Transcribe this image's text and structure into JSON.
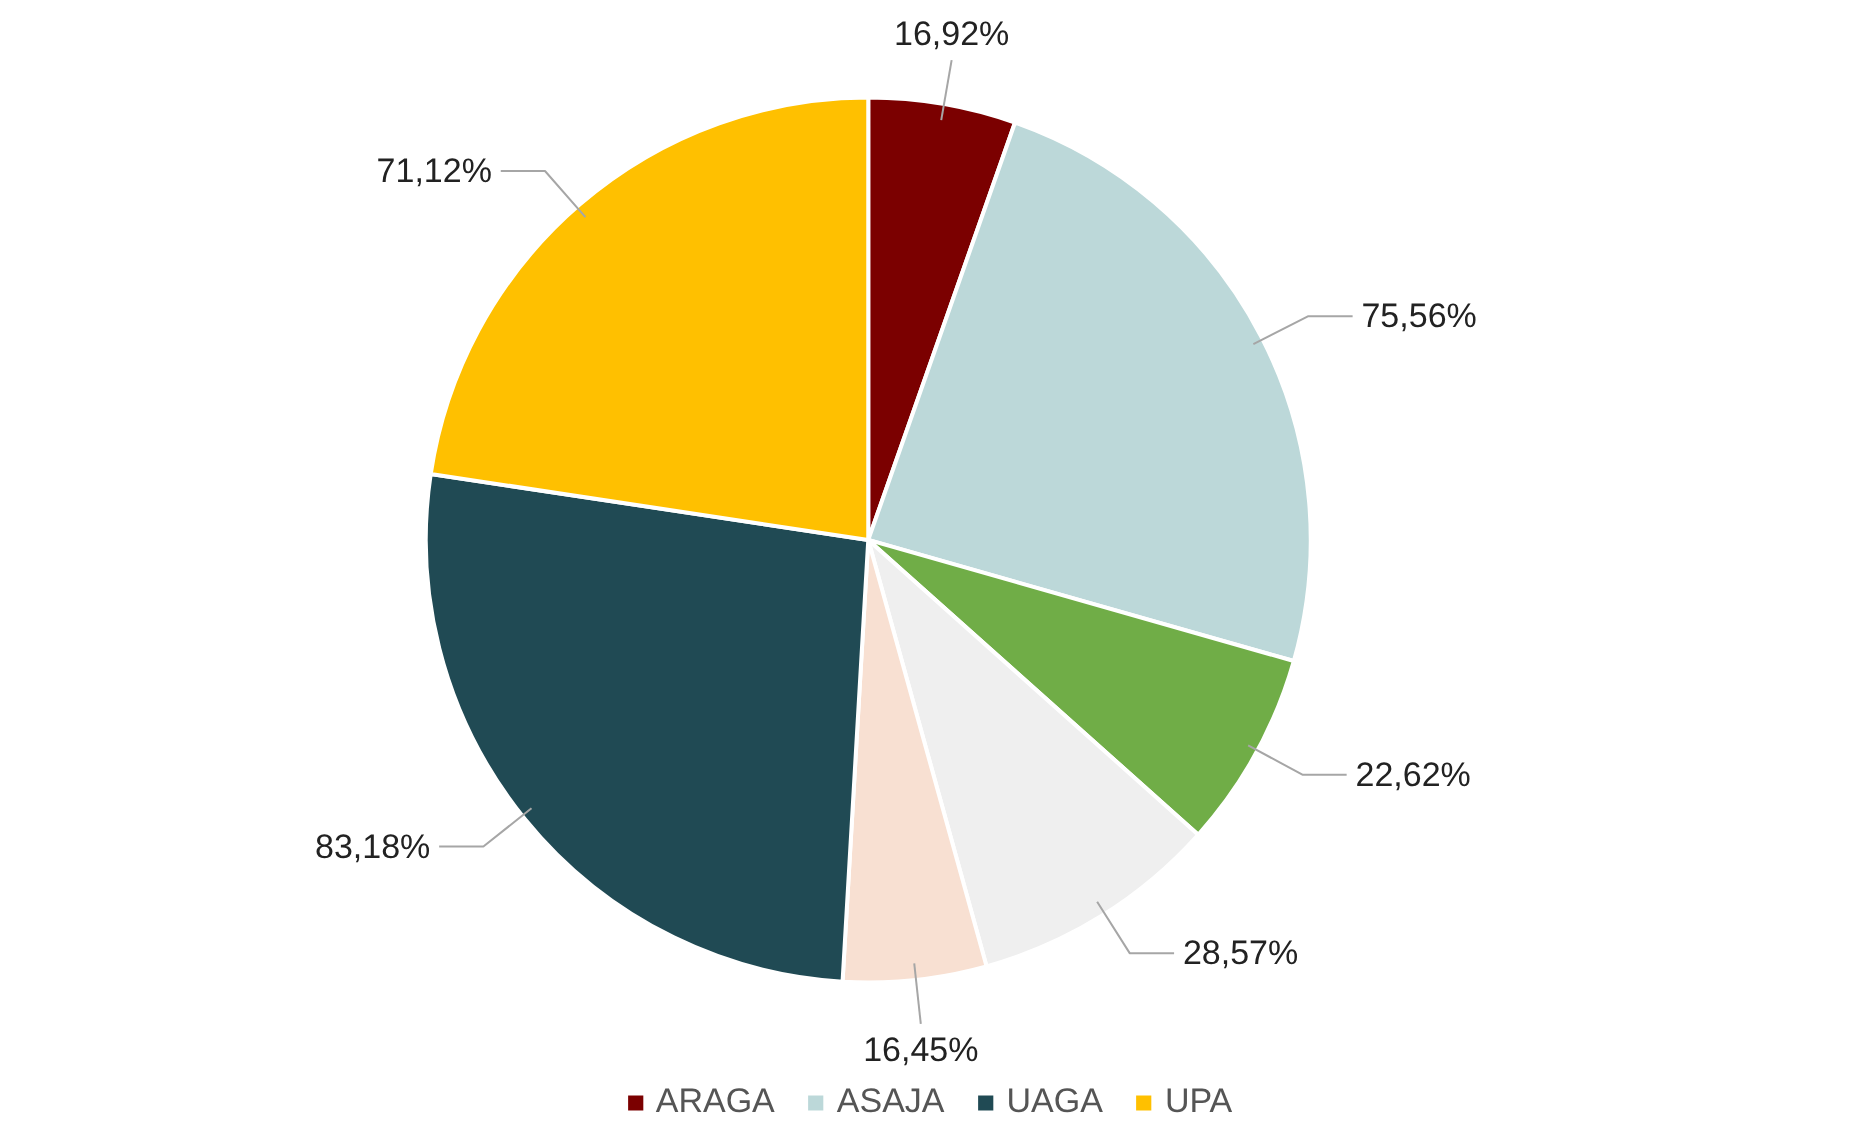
{
  "chart_data": {
    "type": "pie",
    "categories": [
      "ARAGA",
      "ASAJA",
      null,
      null,
      null,
      "UAGA",
      "UPA"
    ],
    "values": [
      16.92,
      75.56,
      22.62,
      28.57,
      16.45,
      83.18,
      71.12
    ],
    "colors": [
      "#7b0000",
      "#bcd8d9",
      "#70ad47",
      "#efefef",
      "#f8e0d2",
      "#204a54",
      "#ffc000"
    ],
    "value_labels": [
      "16,92%",
      "75,56%",
      "22,62%",
      "28,57%",
      "16,45%",
      "83,18%",
      "71,12%"
    ],
    "legend": "bottom"
  }
}
